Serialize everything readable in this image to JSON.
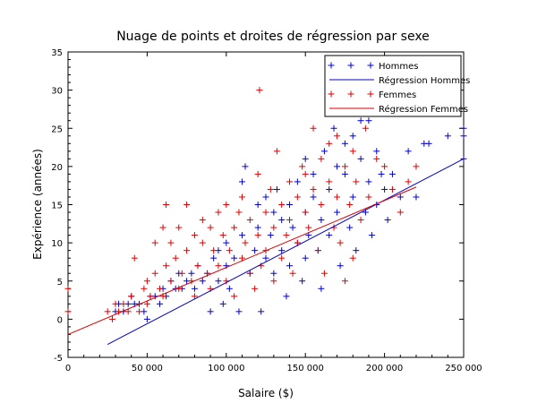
{
  "chart_data": {
    "type": "scatter",
    "title": "Nuage de points et droites de régression par sexe",
    "xlabel": "Salaire ($)",
    "ylabel": "Expérience (années)",
    "xlim": [
      0,
      250000
    ],
    "ylim": [
      -5,
      35
    ],
    "xticks": [
      0,
      50000,
      100000,
      150000,
      200000,
      250000
    ],
    "xtick_labels": [
      "0",
      "50 000",
      "100 000",
      "150 000",
      "200 000",
      "250 000"
    ],
    "yticks": [
      -5,
      0,
      5,
      10,
      15,
      20,
      25,
      30,
      35
    ],
    "ytick_labels": [
      "-5",
      "0",
      "5",
      "10",
      "15",
      "20",
      "25",
      "30",
      "35"
    ],
    "grid": false,
    "legend_position": "top-right",
    "series": [
      {
        "name": "Hommes",
        "kind": "points",
        "marker": "+",
        "color": "#0000cc",
        "points": [
          [
            30000,
            1
          ],
          [
            32000,
            2
          ],
          [
            35000,
            1
          ],
          [
            38000,
            2
          ],
          [
            40000,
            3
          ],
          [
            42000,
            2
          ],
          [
            45000,
            2
          ],
          [
            48000,
            1
          ],
          [
            50000,
            0
          ],
          [
            52000,
            3
          ],
          [
            55000,
            3
          ],
          [
            58000,
            2
          ],
          [
            60000,
            4
          ],
          [
            62000,
            3
          ],
          [
            65000,
            5
          ],
          [
            68000,
            4
          ],
          [
            70000,
            6
          ],
          [
            72000,
            4
          ],
          [
            75000,
            5
          ],
          [
            78000,
            6
          ],
          [
            80000,
            4
          ],
          [
            82000,
            7
          ],
          [
            85000,
            5
          ],
          [
            88000,
            6
          ],
          [
            90000,
            1
          ],
          [
            92000,
            8
          ],
          [
            95000,
            5
          ],
          [
            95000,
            9
          ],
          [
            98000,
            2
          ],
          [
            100000,
            7
          ],
          [
            100000,
            10
          ],
          [
            102000,
            4
          ],
          [
            105000,
            8
          ],
          [
            108000,
            1
          ],
          [
            110000,
            11
          ],
          [
            110000,
            18
          ],
          [
            112000,
            20
          ],
          [
            115000,
            6
          ],
          [
            118000,
            9
          ],
          [
            120000,
            12
          ],
          [
            120000,
            15
          ],
          [
            122000,
            1
          ],
          [
            125000,
            8
          ],
          [
            125000,
            16
          ],
          [
            128000,
            11
          ],
          [
            130000,
            6
          ],
          [
            130000,
            14
          ],
          [
            132000,
            17
          ],
          [
            135000,
            9
          ],
          [
            135000,
            13
          ],
          [
            138000,
            3
          ],
          [
            140000,
            7
          ],
          [
            140000,
            15
          ],
          [
            142000,
            12
          ],
          [
            145000,
            10
          ],
          [
            145000,
            18
          ],
          [
            148000,
            5
          ],
          [
            150000,
            8
          ],
          [
            150000,
            14
          ],
          [
            150000,
            21
          ],
          [
            152000,
            11
          ],
          [
            155000,
            16
          ],
          [
            155000,
            19
          ],
          [
            158000,
            9
          ],
          [
            160000,
            13
          ],
          [
            160000,
            4
          ],
          [
            162000,
            22
          ],
          [
            165000,
            17
          ],
          [
            165000,
            11
          ],
          [
            168000,
            25
          ],
          [
            170000,
            14
          ],
          [
            170000,
            20
          ],
          [
            172000,
            7
          ],
          [
            175000,
            19
          ],
          [
            175000,
            23
          ],
          [
            178000,
            12
          ],
          [
            180000,
            16
          ],
          [
            180000,
            24
          ],
          [
            182000,
            9
          ],
          [
            185000,
            26
          ],
          [
            185000,
            21
          ],
          [
            188000,
            14
          ],
          [
            190000,
            26
          ],
          [
            190000,
            18
          ],
          [
            192000,
            11
          ],
          [
            195000,
            22
          ],
          [
            195000,
            15
          ],
          [
            198000,
            19
          ],
          [
            200000,
            17
          ],
          [
            202000,
            13
          ],
          [
            205000,
            19
          ],
          [
            210000,
            16
          ],
          [
            215000,
            22
          ],
          [
            220000,
            16
          ],
          [
            225000,
            23
          ],
          [
            228000,
            23
          ],
          [
            240000,
            24
          ],
          [
            250000,
            25
          ],
          [
            250000,
            24
          ],
          [
            250000,
            21
          ]
        ]
      },
      {
        "name": "Régression Hommes",
        "kind": "line",
        "color": "#0000cc",
        "x": [
          25000,
          250000
        ],
        "y": [
          -3.3,
          21
        ]
      },
      {
        "name": "Femmes",
        "kind": "points",
        "marker": "+",
        "color": "#dd0000",
        "points": [
          [
            0,
            4
          ],
          [
            0,
            1
          ],
          [
            25000,
            1
          ],
          [
            28000,
            0
          ],
          [
            30000,
            2
          ],
          [
            32000,
            1
          ],
          [
            35000,
            2
          ],
          [
            38000,
            1
          ],
          [
            40000,
            3
          ],
          [
            42000,
            8
          ],
          [
            45000,
            1
          ],
          [
            48000,
            4
          ],
          [
            50000,
            2
          ],
          [
            50000,
            5
          ],
          [
            52000,
            3
          ],
          [
            55000,
            6
          ],
          [
            55000,
            10
          ],
          [
            58000,
            4
          ],
          [
            60000,
            12
          ],
          [
            60000,
            3
          ],
          [
            62000,
            7
          ],
          [
            62000,
            15
          ],
          [
            65000,
            5
          ],
          [
            65000,
            10
          ],
          [
            68000,
            8
          ],
          [
            70000,
            4
          ],
          [
            70000,
            12
          ],
          [
            72000,
            6
          ],
          [
            75000,
            9
          ],
          [
            75000,
            15
          ],
          [
            78000,
            5
          ],
          [
            80000,
            11
          ],
          [
            80000,
            3
          ],
          [
            82000,
            7
          ],
          [
            85000,
            10
          ],
          [
            85000,
            13
          ],
          [
            88000,
            6
          ],
          [
            90000,
            12
          ],
          [
            90000,
            4
          ],
          [
            92000,
            9
          ],
          [
            95000,
            14
          ],
          [
            95000,
            7
          ],
          [
            98000,
            11
          ],
          [
            100000,
            5
          ],
          [
            100000,
            15
          ],
          [
            102000,
            9
          ],
          [
            105000,
            12
          ],
          [
            105000,
            3
          ],
          [
            108000,
            14
          ],
          [
            110000,
            8
          ],
          [
            110000,
            16
          ],
          [
            112000,
            10
          ],
          [
            115000,
            6
          ],
          [
            115000,
            13
          ],
          [
            118000,
            4
          ],
          [
            120000,
            11
          ],
          [
            120000,
            19
          ],
          [
            121000,
            30
          ],
          [
            122000,
            7
          ],
          [
            125000,
            14
          ],
          [
            125000,
            9
          ],
          [
            128000,
            17
          ],
          [
            130000,
            12
          ],
          [
            130000,
            5
          ],
          [
            132000,
            22
          ],
          [
            135000,
            15
          ],
          [
            135000,
            8
          ],
          [
            138000,
            11
          ],
          [
            140000,
            18
          ],
          [
            140000,
            13
          ],
          [
            142000,
            6
          ],
          [
            145000,
            16
          ],
          [
            145000,
            10
          ],
          [
            148000,
            20
          ],
          [
            150000,
            14
          ],
          [
            150000,
            19
          ],
          [
            152000,
            12
          ],
          [
            155000,
            25
          ],
          [
            155000,
            17
          ],
          [
            158000,
            9
          ],
          [
            160000,
            21
          ],
          [
            160000,
            15
          ],
          [
            162000,
            6
          ],
          [
            165000,
            18
          ],
          [
            165000,
            23
          ],
          [
            168000,
            12
          ],
          [
            170000,
            24
          ],
          [
            170000,
            16
          ],
          [
            172000,
            10
          ],
          [
            175000,
            20
          ],
          [
            175000,
            5
          ],
          [
            178000,
            15
          ],
          [
            180000,
            22
          ],
          [
            180000,
            8
          ],
          [
            182000,
            18
          ],
          [
            185000,
            13
          ],
          [
            188000,
            25
          ],
          [
            190000,
            16
          ],
          [
            195000,
            21
          ],
          [
            200000,
            20
          ],
          [
            205000,
            17
          ],
          [
            210000,
            14
          ],
          [
            215000,
            18
          ],
          [
            220000,
            20
          ]
        ]
      },
      {
        "name": "Régression Femmes",
        "kind": "line",
        "color": "#dd0000",
        "x": [
          0,
          220000
        ],
        "y": [
          -2,
          17.3
        ]
      }
    ]
  }
}
